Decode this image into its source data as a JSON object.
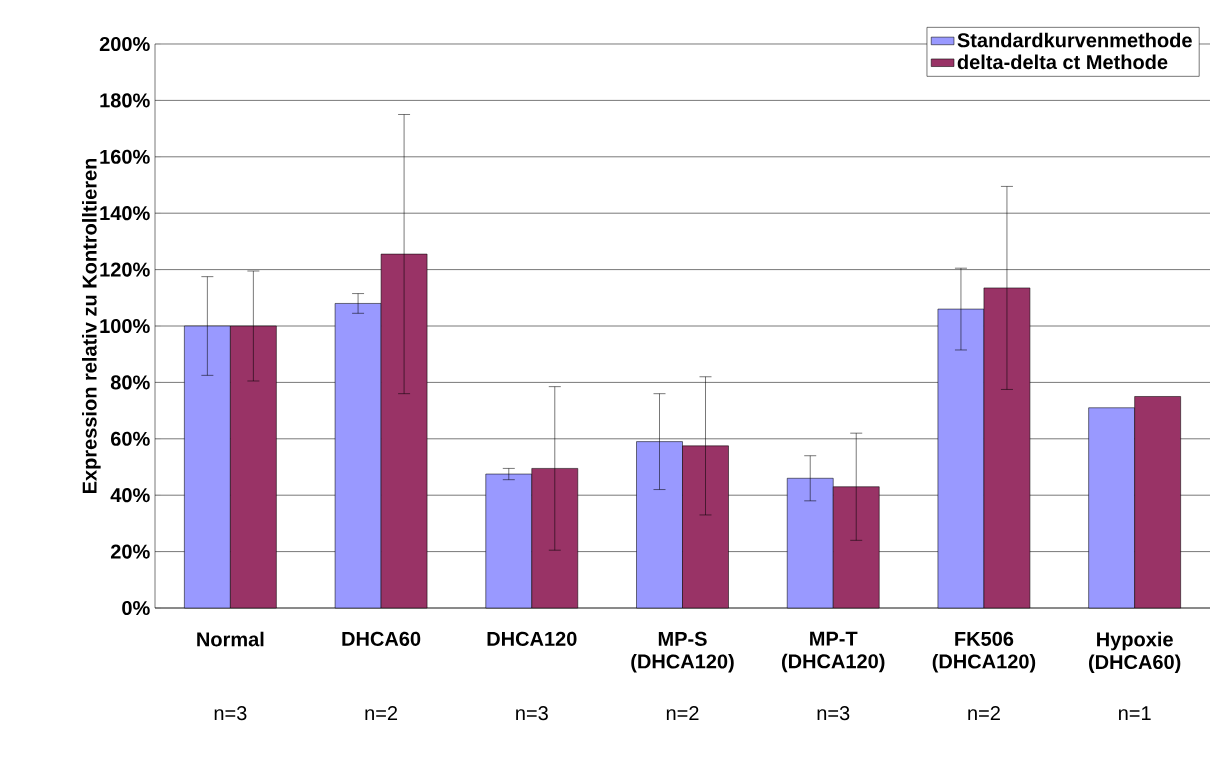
{
  "chart_data": {
    "type": "bar",
    "ylabel": "Expression relativ zu Kontrolltieren",
    "categories": [
      "Normal",
      "DHCA60",
      "DHCA120",
      "MP-S (DHCA120)",
      "MP-T (DHCA120)",
      "FK506 (DHCA120)",
      "Hypoxie (DHCA60)"
    ],
    "series": [
      {
        "name": "Standardkurvenmethode",
        "color": "#9999ff",
        "values": [
          100,
          108,
          47.5,
          59,
          46,
          106,
          71
        ],
        "errors": [
          17.5,
          3.5,
          2,
          17,
          8,
          14.5,
          null
        ]
      },
      {
        "name": "delta-delta ct Methode",
        "color": "#993366",
        "values": [
          100,
          125.5,
          49.5,
          57.5,
          43,
          113.5,
          75
        ],
        "errors": [
          19.5,
          49.5,
          29,
          24.5,
          19,
          36,
          null
        ]
      }
    ],
    "ylim": [
      0,
      200
    ],
    "yticks": [
      {
        "value": 0,
        "label": "0%"
      },
      {
        "value": 20,
        "label": "20%"
      },
      {
        "value": 40,
        "label": "40%"
      },
      {
        "value": 60,
        "label": "60%"
      },
      {
        "value": 80,
        "label": "80%"
      },
      {
        "value": 100,
        "label": "100%"
      },
      {
        "value": 120,
        "label": "120%"
      },
      {
        "value": 140,
        "label": "140%"
      },
      {
        "value": 160,
        "label": "160%"
      },
      {
        "value": 180,
        "label": "180%"
      },
      {
        "value": 200,
        "label": "200%"
      }
    ],
    "grid": "y",
    "legend": "top right",
    "annotations": [
      "n=3",
      "n=2",
      "n=3",
      "n=2",
      "n=3",
      "n=2",
      "n=1"
    ]
  }
}
